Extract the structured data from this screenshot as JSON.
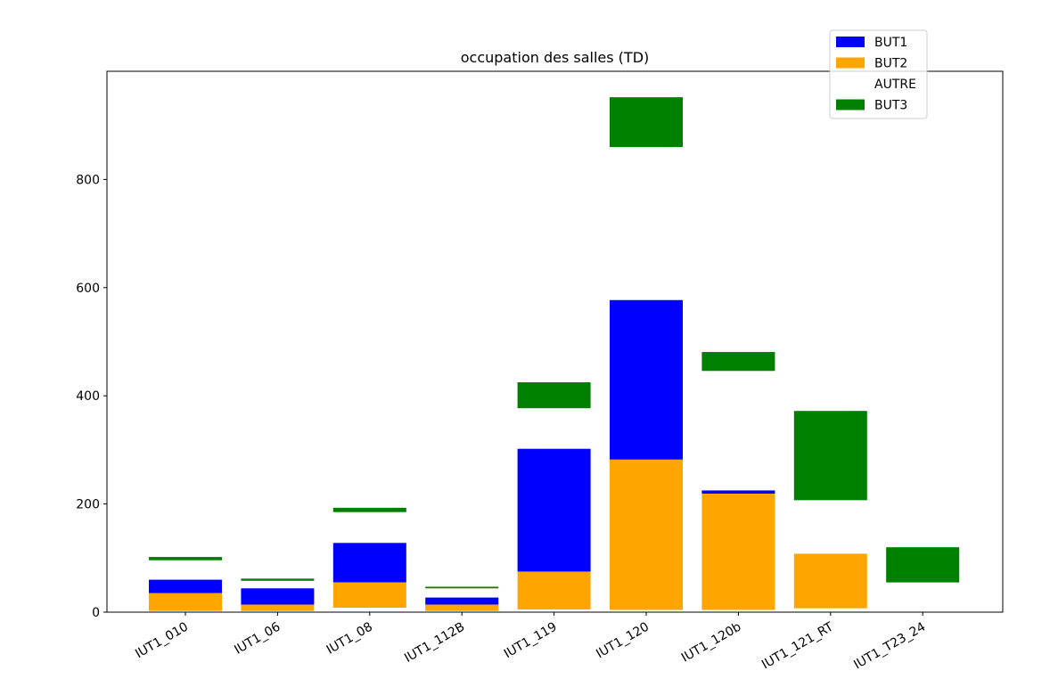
{
  "chart_data": {
    "type": "bar",
    "title": "occupation des salles (TD)",
    "xlabel": "",
    "ylabel": "",
    "ylim": [
      0,
      1000
    ],
    "yticks": [
      0,
      200,
      400,
      600,
      800
    ],
    "categories": [
      "IUT1_010",
      "IUT1_06",
      "IUT1_08",
      "IUT1_112B",
      "IUT1_119",
      "IUT1_120",
      "IUT1_120b",
      "IUT1_121_RT",
      "IUT1_T23_24"
    ],
    "series": [
      {
        "name": "BUT1",
        "color": "#0000ff",
        "segments": [
          [
            35,
            60
          ],
          [
            14,
            44
          ],
          [
            55,
            128
          ],
          [
            14,
            27
          ],
          [
            75,
            302
          ],
          [
            282,
            577
          ],
          [
            219,
            225
          ],
          [
            108,
            108
          ],
          [
            0,
            0
          ]
        ]
      },
      {
        "name": "BUT2",
        "color": "#ffa500",
        "segments": [
          [
            2,
            35
          ],
          [
            2,
            14
          ],
          [
            8,
            55
          ],
          [
            2,
            14
          ],
          [
            5,
            75
          ],
          [
            4,
            282
          ],
          [
            4,
            219
          ],
          [
            7,
            108
          ],
          [
            0,
            0
          ]
        ]
      },
      {
        "name": "AUTRE",
        "color": "#ffffff",
        "segments": [
          [
            0,
            2
          ],
          [
            0,
            2
          ],
          [
            0,
            8
          ],
          [
            0,
            2
          ],
          [
            0,
            5
          ],
          [
            0,
            4
          ],
          [
            0,
            4
          ],
          [
            0,
            7
          ],
          [
            0,
            0
          ]
        ]
      },
      {
        "name": "BUT3",
        "color": "#008000",
        "segments": [
          [
            96,
            102
          ],
          [
            58,
            62
          ],
          [
            185,
            193
          ],
          [
            44,
            47
          ],
          [
            377,
            425
          ],
          [
            860,
            952
          ],
          [
            446,
            481
          ],
          [
            207,
            372
          ],
          [
            55,
            120
          ]
        ]
      }
    ],
    "legend": {
      "placement": "top-right",
      "entries": [
        {
          "label": "BUT1",
          "color": "#0000ff"
        },
        {
          "label": "BUT2",
          "color": "#ffa500"
        },
        {
          "label": "AUTRE",
          "color": "#ffffff"
        },
        {
          "label": "BUT3",
          "color": "#008000"
        }
      ]
    },
    "xtick_rotation_deg": 30
  }
}
